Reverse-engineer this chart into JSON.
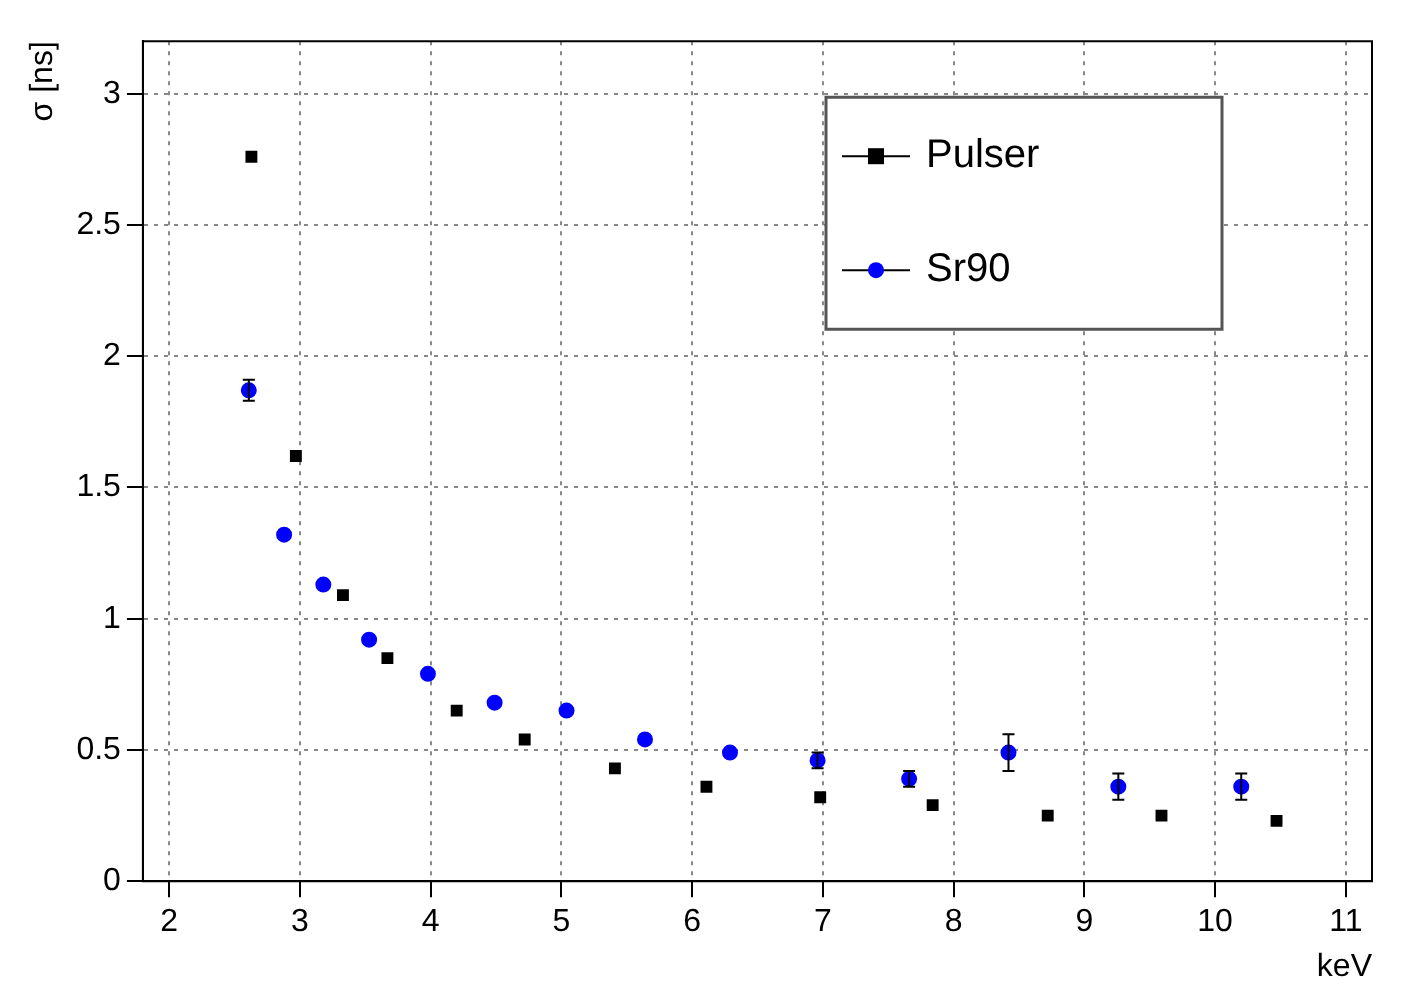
{
  "chart_data": {
    "type": "scatter",
    "xlabel": "keV",
    "ylabel": "σ [ns]",
    "xlim": [
      1.8,
      11.2
    ],
    "xticks": [
      2,
      3,
      4,
      5,
      6,
      7,
      8,
      9,
      10,
      11
    ],
    "ylim": [
      0,
      3.2
    ],
    "yticks": [
      0,
      0.5,
      1,
      1.5,
      2,
      2.5,
      3
    ],
    "grid": true,
    "legend": "top right",
    "series": [
      {
        "name": "Pulser",
        "color": "#000000",
        "marker": "square",
        "x": [
          2.63,
          2.97,
          3.33,
          3.67,
          4.2,
          4.72,
          5.41,
          6.11,
          6.98,
          7.84,
          8.72,
          9.59,
          10.47
        ],
        "values": [
          2.76,
          1.62,
          1.09,
          0.85,
          0.65,
          0.54,
          0.43,
          0.36,
          0.32,
          0.29,
          0.25,
          0.25,
          0.23
        ]
      },
      {
        "name": "Sr90",
        "color": "#0000ff",
        "marker": "circle",
        "x": [
          2.61,
          2.88,
          3.18,
          3.53,
          3.98,
          4.49,
          5.04,
          5.64,
          6.29,
          6.96,
          7.66,
          8.42,
          9.26,
          10.2
        ],
        "values": [
          1.87,
          1.32,
          1.13,
          0.92,
          0.79,
          0.68,
          0.65,
          0.54,
          0.49,
          0.46,
          0.39,
          0.49,
          0.36,
          0.36
        ],
        "errors": [
          0.04,
          null,
          null,
          null,
          null,
          null,
          null,
          null,
          null,
          0.03,
          0.03,
          0.07,
          0.05,
          0.05
        ]
      }
    ]
  }
}
